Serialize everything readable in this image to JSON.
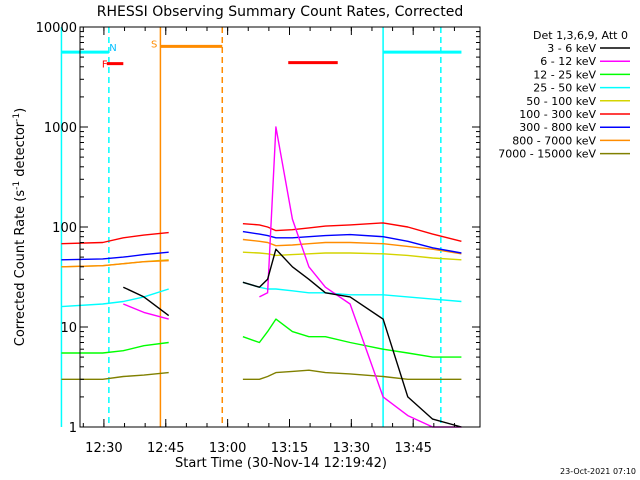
{
  "chart_data": {
    "type": "line",
    "title": "RHESSI Observing Summary Count Rates, Corrected",
    "xlabel": "Start Time (30-Nov-14 12:19:42)",
    "ylabel_main": "Corrected Count Rate (s",
    "ylabel_sup": "-1",
    "ylabel_mid": " detector",
    "ylabel_tail": ")",
    "ylog": true,
    "ylim": [
      1,
      10000
    ],
    "y_ticks": [
      {
        "value": 1,
        "label": "1"
      },
      {
        "value": 10,
        "label": "10"
      },
      {
        "value": 100,
        "label": "100"
      },
      {
        "value": 1000,
        "label": "1000"
      },
      {
        "value": 10000,
        "label": "10000"
      }
    ],
    "xlim_min": [
      4.5,
      65.3
    ],
    "x_ticks": [
      {
        "value": 10.3,
        "label": "12:30"
      },
      {
        "value": 25.3,
        "label": "12:45"
      },
      {
        "value": 40.3,
        "label": "13:00"
      },
      {
        "value": 55.3,
        "label": "13:15"
      },
      {
        "value": 70.3,
        "label": "13:30"
      },
      {
        "value": 85.3,
        "label": "13:45"
      }
    ],
    "xlim": [
      0,
      97
    ],
    "legend_header": "Det 1,3,6,9, Att 0",
    "series": [
      {
        "name": "3 - 6 keV",
        "color": "#000000"
      },
      {
        "name": "6 - 12 keV",
        "color": "#ff00ff"
      },
      {
        "name": "12 - 25 keV",
        "color": "#00ff00"
      },
      {
        "name": "25 - 50 keV",
        "color": "#00ffff"
      },
      {
        "name": "50 - 100 keV",
        "color": "#d4d400"
      },
      {
        "name": "100 - 300 keV",
        "color": "#ff0000"
      },
      {
        "name": "300 - 800 keV",
        "color": "#0000ff"
      },
      {
        "name": "800 - 7000 keV",
        "color": "#ff8c00"
      },
      {
        "name": "7000 - 15000 keV",
        "color": "#808000"
      }
    ],
    "segment_1": {
      "x": [
        0,
        10,
        15,
        20,
        26
      ],
      "values": {
        "3 - 6 keV": [
          null,
          null,
          25,
          20,
          13
        ],
        "6 - 12 keV": [
          null,
          null,
          17,
          14,
          12
        ],
        "12 - 25 keV": [
          5.5,
          5.5,
          5.8,
          6.5,
          7
        ],
        "25 - 50 keV": [
          16,
          17,
          18,
          20,
          24
        ],
        "50 - 100 keV": [
          40,
          41,
          43,
          45,
          47
        ],
        "100 - 300 keV": [
          68,
          70,
          78,
          83,
          88
        ],
        "300 - 800 keV": [
          47,
          48,
          50,
          53,
          56
        ],
        "800 - 7000 keV": [
          40,
          41,
          43,
          45,
          46
        ],
        "7000 - 15000 keV": [
          3,
          3,
          3.2,
          3.3,
          3.5
        ]
      }
    },
    "segment_2": {
      "x": [
        44,
        48,
        50,
        52,
        56,
        60,
        64,
        70,
        78,
        84,
        90,
        97
      ],
      "values": {
        "3 - 6 keV": [
          28,
          25,
          30,
          60,
          40,
          30,
          22,
          20,
          12,
          2,
          1.2,
          1
        ],
        "6 - 12 keV": [
          null,
          20,
          22,
          1000,
          120,
          40,
          25,
          17,
          2,
          1.3,
          1,
          1
        ],
        "12 - 25 keV": [
          8,
          7,
          9,
          12,
          9,
          8,
          8,
          7,
          6,
          5.5,
          5,
          5
        ],
        "25 - 50 keV": [
          28,
          25,
          24,
          24,
          23,
          22,
          22,
          21,
          21,
          20,
          19,
          18
        ],
        "50 - 100 keV": [
          56,
          55,
          54,
          52,
          53,
          54,
          55,
          55,
          54,
          52,
          49,
          47
        ],
        "100 - 300 keV": [
          108,
          105,
          100,
          92,
          94,
          98,
          102,
          105,
          110,
          100,
          85,
          72
        ],
        "300 - 800 keV": [
          90,
          85,
          82,
          78,
          78,
          80,
          82,
          84,
          80,
          72,
          62,
          55
        ],
        "800 - 7000 keV": [
          75,
          72,
          70,
          65,
          66,
          68,
          70,
          70,
          68,
          64,
          60,
          54
        ],
        "7000 - 15000 keV": [
          3,
          3,
          3.2,
          3.5,
          3.6,
          3.7,
          3.5,
          3.4,
          3.2,
          3,
          3,
          3
        ]
      }
    },
    "attenuator_bars": [
      {
        "x0": 0,
        "x1": 11.5,
        "y": 5600,
        "color": "#00ffff"
      },
      {
        "x0": 11,
        "x1": 15,
        "y": 4300,
        "color": "#ff0000"
      },
      {
        "x0": 24,
        "x1": 39,
        "y": 6400,
        "color": "#ff8c00"
      },
      {
        "x0": 55,
        "x1": 67,
        "y": 4400,
        "color": "#ff0000"
      },
      {
        "x0": 78,
        "x1": 97,
        "y": 5600,
        "color": "#00ffff"
      }
    ],
    "vlines": [
      {
        "x": 0,
        "color": "#00ffff",
        "dash": false
      },
      {
        "x": 11.5,
        "color": "#00ffff",
        "dash": true
      },
      {
        "x": 24,
        "color": "#ff8c00",
        "dash": false
      },
      {
        "x": 39,
        "color": "#ff8c00",
        "dash": true
      },
      {
        "x": 78,
        "color": "#00ffff",
        "dash": false
      },
      {
        "x": 92,
        "color": "#00ffff",
        "dash": true
      }
    ],
    "markers": [
      {
        "text": "N",
        "x": 12.5,
        "y": 6300,
        "color": "#00bfff"
      },
      {
        "text": "F",
        "x": 10.5,
        "y": 4300,
        "color": "#ff0000"
      },
      {
        "text": "S",
        "x": 22.5,
        "y": 6800,
        "color": "#ff8c00"
      }
    ]
  },
  "footer_timestamp": "23-Oct-2021 07:10"
}
